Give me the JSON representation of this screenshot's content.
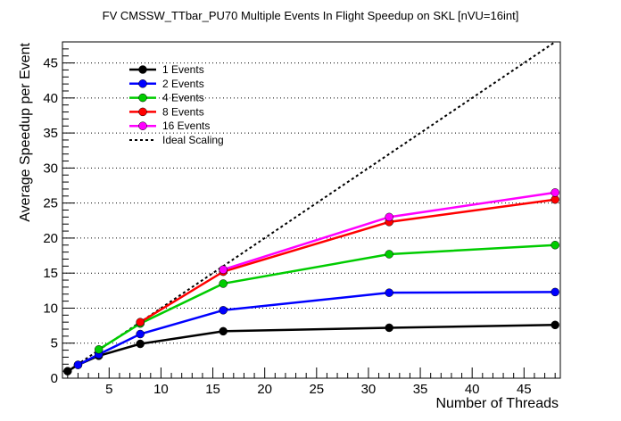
{
  "chart_data": {
    "type": "line",
    "title": "FV CMSSW_TTbar_PU70 Multiple Events In Flight Speedup on SKL [nVU=16int]",
    "xlabel": "Number of Threads",
    "ylabel": "Average Speedup per Event",
    "xlim": [
      0.5,
      48.5
    ],
    "ylim": [
      0,
      48
    ],
    "xticks": [
      5,
      10,
      15,
      20,
      25,
      30,
      35,
      40,
      45
    ],
    "yticks": [
      0,
      5,
      10,
      15,
      20,
      25,
      30,
      35,
      40,
      45
    ],
    "grid": "horizontal dotted",
    "legend_position": "top-left",
    "x": [
      1,
      2,
      4,
      8,
      16,
      32,
      48
    ],
    "series": [
      {
        "name": "1 Events",
        "color": "#000000",
        "values": [
          1.0,
          1.9,
          3.2,
          4.9,
          6.7,
          7.2,
          7.6
        ]
      },
      {
        "name": "2 Events",
        "color": "#0000ff",
        "values": [
          null,
          1.9,
          3.4,
          6.3,
          9.7,
          12.2,
          12.3
        ]
      },
      {
        "name": "4 Events",
        "color": "#00cc00",
        "values": [
          null,
          null,
          4.1,
          7.8,
          13.5,
          17.7,
          19.0
        ]
      },
      {
        "name": "8 Events",
        "color": "#ff0000",
        "values": [
          null,
          null,
          null,
          8.0,
          15.2,
          22.3,
          25.5
        ]
      },
      {
        "name": "16 Events",
        "color": "#ff00ff",
        "values": [
          null,
          null,
          null,
          null,
          15.5,
          23.0,
          26.5
        ]
      }
    ],
    "ideal": {
      "name": "Ideal Scaling",
      "color": "#000000",
      "x": [
        1,
        48
      ],
      "y": [
        1,
        48
      ]
    }
  }
}
